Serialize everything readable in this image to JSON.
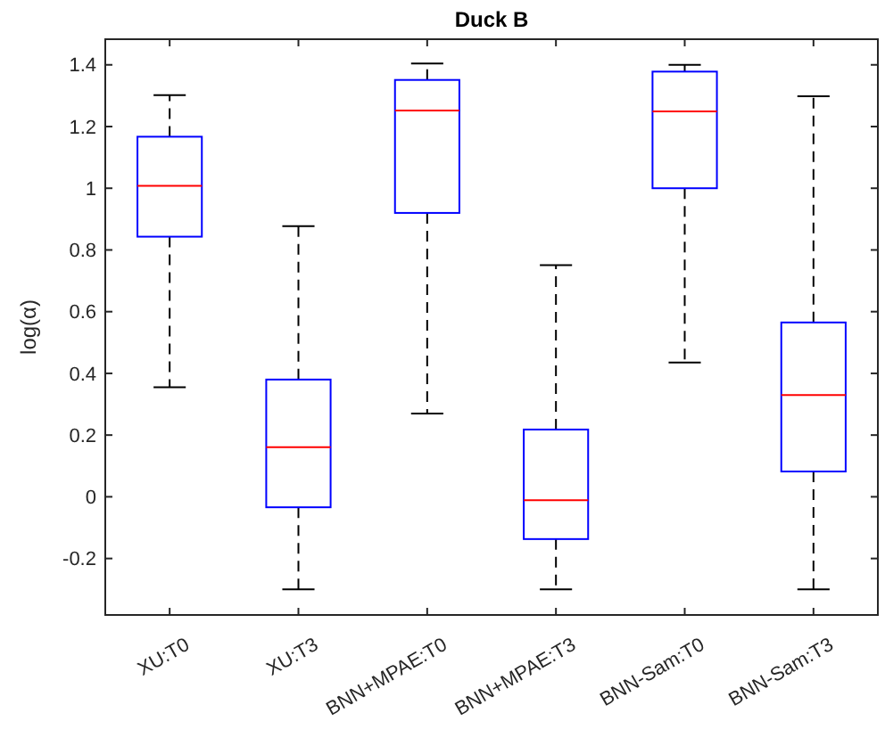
{
  "chart_data": {
    "type": "box",
    "title": "Duck B",
    "ylabel": "log(α)",
    "categories": [
      "XU:T0",
      "XU:T3",
      "BNN+MPAE:T0",
      "BNN+MPAE:T3",
      "BNN-Sam:T0",
      "BNN-Sam:T3"
    ],
    "boxes": [
      {
        "low": 0.355,
        "q1": 0.843,
        "median": 1.008,
        "q3": 1.167,
        "high": 1.302
      },
      {
        "low": -0.3,
        "q1": -0.034,
        "median": 0.161,
        "q3": 0.38,
        "high": 0.877
      },
      {
        "low": 0.27,
        "q1": 0.92,
        "median": 1.252,
        "q3": 1.351,
        "high": 1.404
      },
      {
        "low": -0.3,
        "q1": -0.137,
        "median": -0.011,
        "q3": 0.218,
        "high": 0.751
      },
      {
        "low": 0.435,
        "q1": 1.0,
        "median": 1.249,
        "q3": 1.378,
        "high": 1.4
      },
      {
        "low": -0.3,
        "q1": 0.082,
        "median": 0.33,
        "q3": 0.565,
        "high": 1.298
      }
    ],
    "color": "#0000ff",
    "ylim": [
      -0.383,
      1.483
    ],
    "yticks": [
      -0.2,
      0,
      0.2,
      0.4,
      0.6,
      0.8,
      1,
      1.2,
      1.4
    ]
  }
}
